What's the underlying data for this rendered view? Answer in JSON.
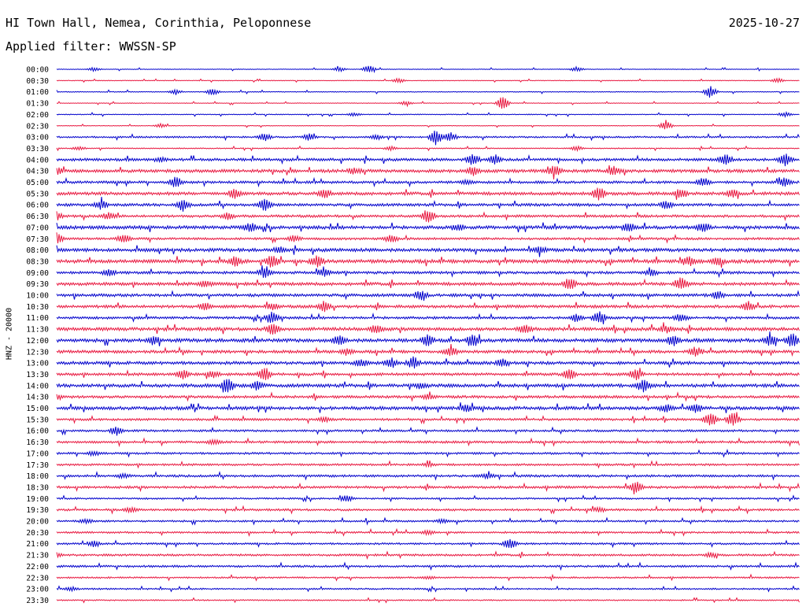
{
  "header": {
    "station": "HI Town Hall, Nemea, Corinthia, Peloponnese",
    "date": "2025-10-27",
    "filter": "Applied filter: WWSSN-SP",
    "ylabel": "HNZ - 20000"
  },
  "chart_data": {
    "type": "line",
    "title": "HI Town Hall, Nemea, Corinthia, Peloponnese",
    "subtitle": "Applied filter: WWSSN-SP",
    "ylabel": "HNZ - 20000",
    "colors": [
      "#0000cc",
      "#e8173f"
    ],
    "rows": [
      {
        "time": "00:00",
        "noise": 0.3,
        "events": [
          [
            0.05,
            2.5
          ],
          [
            0.38,
            3
          ],
          [
            0.42,
            5
          ],
          [
            0.7,
            3
          ]
        ]
      },
      {
        "time": "00:30",
        "noise": 0.3,
        "events": [
          [
            0.46,
            3
          ],
          [
            0.97,
            3
          ]
        ]
      },
      {
        "time": "01:00",
        "noise": 0.4,
        "events": [
          [
            0.16,
            3
          ],
          [
            0.21,
            4
          ],
          [
            0.88,
            8
          ]
        ]
      },
      {
        "time": "01:30",
        "noise": 0.3,
        "events": [
          [
            0.47,
            2.5
          ],
          [
            0.6,
            9
          ]
        ]
      },
      {
        "time": "02:00",
        "noise": 0.4,
        "events": [
          [
            0.4,
            2
          ],
          [
            0.98,
            3
          ]
        ]
      },
      {
        "time": "02:30",
        "noise": 0.3,
        "events": [
          [
            0.14,
            2.5
          ],
          [
            0.82,
            6
          ]
        ]
      },
      {
        "time": "03:00",
        "noise": 0.8,
        "events": [
          [
            0.28,
            5
          ],
          [
            0.34,
            4
          ],
          [
            0.43,
            3
          ],
          [
            0.51,
            11
          ],
          [
            0.53,
            6
          ]
        ]
      },
      {
        "time": "03:30",
        "noise": 0.5,
        "events": [
          [
            0.03,
            2.5
          ],
          [
            0.45,
            2.5
          ],
          [
            0.7,
            3
          ]
        ]
      },
      {
        "time": "04:00",
        "noise": 1.3,
        "events": [
          [
            0.14,
            3
          ],
          [
            0.56,
            8
          ],
          [
            0.59,
            6
          ],
          [
            0.9,
            7
          ],
          [
            0.98,
            8
          ]
        ]
      },
      {
        "time": "04:30",
        "noise": 1.5,
        "events": [
          [
            0.0,
            4
          ],
          [
            0.4,
            4
          ],
          [
            0.56,
            5
          ],
          [
            0.67,
            7
          ],
          [
            0.75,
            5
          ]
        ]
      },
      {
        "time": "05:00",
        "noise": 1.2,
        "events": [
          [
            0.16,
            7
          ],
          [
            0.55,
            3
          ],
          [
            0.87,
            6
          ],
          [
            0.98,
            5
          ]
        ]
      },
      {
        "time": "05:30",
        "noise": 1.5,
        "events": [
          [
            0.24,
            6
          ],
          [
            0.36,
            6
          ],
          [
            0.73,
            9
          ],
          [
            0.84,
            6
          ],
          [
            0.91,
            5
          ]
        ]
      },
      {
        "time": "06:00",
        "noise": 1.3,
        "events": [
          [
            0.06,
            6
          ],
          [
            0.17,
            7
          ],
          [
            0.28,
            9
          ],
          [
            0.82,
            5
          ]
        ]
      },
      {
        "time": "06:30",
        "noise": 1.2,
        "events": [
          [
            0.0,
            5
          ],
          [
            0.07,
            4
          ],
          [
            0.23,
            4
          ],
          [
            0.5,
            9
          ]
        ]
      },
      {
        "time": "07:00",
        "noise": 1.6,
        "events": [
          [
            0.26,
            5
          ],
          [
            0.54,
            4
          ],
          [
            0.77,
            5
          ],
          [
            0.87,
            6
          ]
        ]
      },
      {
        "time": "07:30",
        "noise": 1.1,
        "events": [
          [
            0.0,
            8
          ],
          [
            0.09,
            6
          ],
          [
            0.32,
            4
          ],
          [
            0.45,
            5
          ]
        ]
      },
      {
        "time": "08:00",
        "noise": 1.6,
        "events": [
          [
            0.3,
            3
          ],
          [
            0.65,
            4
          ]
        ]
      },
      {
        "time": "08:30",
        "noise": 1.7,
        "events": [
          [
            0.24,
            6
          ],
          [
            0.29,
            8
          ],
          [
            0.35,
            7
          ],
          [
            0.85,
            6
          ],
          [
            0.89,
            5
          ]
        ]
      },
      {
        "time": "09:00",
        "noise": 1.3,
        "events": [
          [
            0.07,
            4
          ],
          [
            0.28,
            6
          ],
          [
            0.36,
            5
          ],
          [
            0.8,
            4
          ]
        ]
      },
      {
        "time": "09:30",
        "noise": 1.5,
        "events": [
          [
            0.2,
            4
          ],
          [
            0.69,
            8
          ],
          [
            0.84,
            8
          ]
        ]
      },
      {
        "time": "10:00",
        "noise": 1.4,
        "events": [
          [
            0.49,
            6
          ],
          [
            0.89,
            5
          ]
        ]
      },
      {
        "time": "10:30",
        "noise": 1.4,
        "events": [
          [
            0.2,
            5
          ],
          [
            0.29,
            4
          ],
          [
            0.36,
            7
          ],
          [
            0.93,
            6
          ]
        ]
      },
      {
        "time": "11:00",
        "noise": 1.2,
        "events": [
          [
            0.29,
            9
          ],
          [
            0.7,
            5
          ],
          [
            0.73,
            8
          ],
          [
            0.84,
            5
          ]
        ]
      },
      {
        "time": "11:30",
        "noise": 1.6,
        "events": [
          [
            0.29,
            8
          ],
          [
            0.43,
            5
          ],
          [
            0.63,
            5
          ],
          [
            0.82,
            4
          ]
        ]
      },
      {
        "time": "12:00",
        "noise": 1.7,
        "events": [
          [
            0.13,
            5
          ],
          [
            0.38,
            6
          ],
          [
            0.5,
            7
          ],
          [
            0.56,
            9
          ],
          [
            0.83,
            7
          ],
          [
            0.96,
            7
          ],
          [
            0.99,
            9
          ]
        ]
      },
      {
        "time": "12:30",
        "noise": 1.4,
        "events": [
          [
            0.39,
            4
          ],
          [
            0.53,
            6
          ],
          [
            0.86,
            6
          ]
        ]
      },
      {
        "time": "13:00",
        "noise": 1.5,
        "events": [
          [
            0.41,
            5
          ],
          [
            0.45,
            6
          ],
          [
            0.48,
            7
          ],
          [
            0.6,
            5
          ]
        ]
      },
      {
        "time": "13:30",
        "noise": 1.3,
        "events": [
          [
            0.17,
            6
          ],
          [
            0.21,
            5
          ],
          [
            0.28,
            9
          ],
          [
            0.69,
            7
          ],
          [
            0.78,
            7
          ]
        ]
      },
      {
        "time": "14:00",
        "noise": 1.6,
        "events": [
          [
            0.23,
            9
          ],
          [
            0.27,
            6
          ],
          [
            0.49,
            4
          ],
          [
            0.79,
            9
          ]
        ]
      },
      {
        "time": "14:30",
        "noise": 1.3,
        "events": [
          [
            0.0,
            3
          ],
          [
            0.5,
            3
          ]
        ]
      },
      {
        "time": "15:00",
        "noise": 1.6,
        "events": [
          [
            0.55,
            4
          ],
          [
            0.82,
            5
          ],
          [
            0.86,
            6
          ]
        ]
      },
      {
        "time": "15:30",
        "noise": 1.1,
        "events": [
          [
            0.36,
            3
          ],
          [
            0.88,
            9
          ],
          [
            0.91,
            9
          ]
        ]
      },
      {
        "time": "16:00",
        "noise": 1.0,
        "events": [
          [
            0.08,
            6
          ]
        ]
      },
      {
        "time": "16:30",
        "noise": 1.1,
        "events": [
          [
            0.21,
            3
          ]
        ]
      },
      {
        "time": "17:00",
        "noise": 1.0,
        "events": [
          [
            0.05,
            2.5
          ]
        ]
      },
      {
        "time": "17:30",
        "noise": 1.0,
        "events": [
          [
            0.5,
            2.5
          ]
        ]
      },
      {
        "time": "18:00",
        "noise": 1.1,
        "events": [
          [
            0.09,
            2.5
          ],
          [
            0.58,
            3
          ]
        ]
      },
      {
        "time": "18:30",
        "noise": 1.2,
        "events": [
          [
            0.78,
            7
          ]
        ]
      },
      {
        "time": "19:00",
        "noise": 0.8,
        "events": [
          [
            0.39,
            4
          ]
        ]
      },
      {
        "time": "19:30",
        "noise": 1.0,
        "events": [
          [
            0.1,
            3
          ],
          [
            0.73,
            3
          ]
        ]
      },
      {
        "time": "20:00",
        "noise": 0.9,
        "events": [
          [
            0.04,
            2.5
          ],
          [
            0.52,
            2.5
          ]
        ]
      },
      {
        "time": "20:30",
        "noise": 0.9,
        "events": [
          [
            0.5,
            2.5
          ]
        ]
      },
      {
        "time": "21:00",
        "noise": 0.9,
        "events": [
          [
            0.05,
            4
          ],
          [
            0.61,
            8
          ]
        ]
      },
      {
        "time": "21:30",
        "noise": 1.0,
        "events": [
          [
            0.0,
            3
          ],
          [
            0.88,
            3
          ]
        ]
      },
      {
        "time": "22:00",
        "noise": 1.0,
        "events": []
      },
      {
        "time": "22:30",
        "noise": 0.8,
        "events": [
          [
            0.5,
            2
          ]
        ]
      },
      {
        "time": "23:00",
        "noise": 0.7,
        "events": [
          [
            0.02,
            2.5
          ]
        ]
      },
      {
        "time": "23:30",
        "noise": 0.6,
        "events": []
      }
    ]
  }
}
